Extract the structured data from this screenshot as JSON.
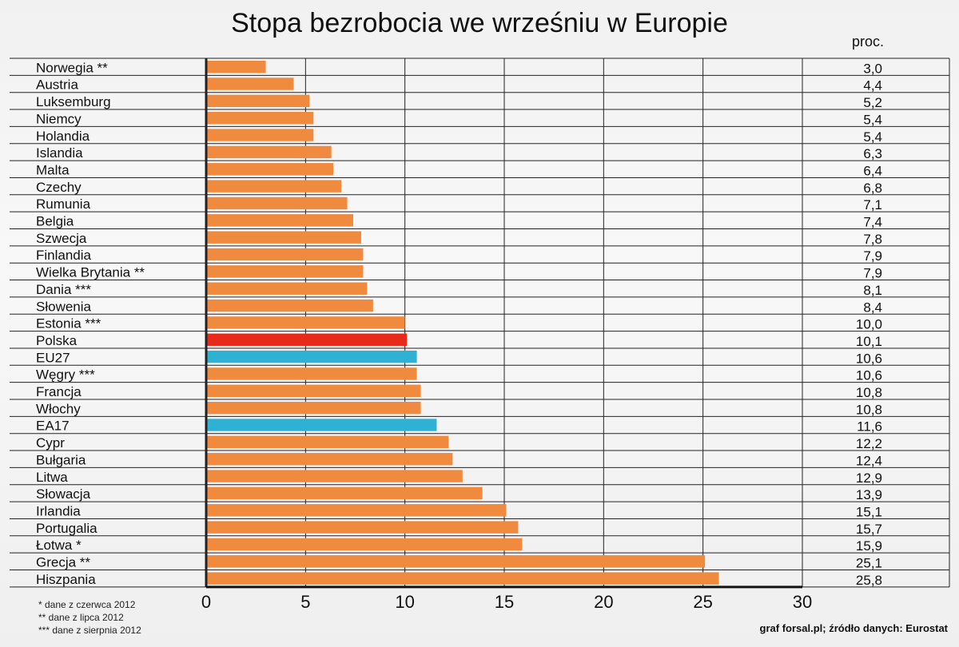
{
  "title": "Stopa bezrobocia we wrześniu w Europie",
  "unit_label": "proc.",
  "footnotes": [
    "* dane z czerwca 2012",
    "** dane z lipca 2012",
    "*** dane z sierpnia 2012"
  ],
  "source": "graf forsal.pl; źródło danych: Eurostat",
  "colors": {
    "default": "#f08a3e",
    "highlight": "#e82a1a",
    "aggregate": "#2eb1d3"
  },
  "chart_data": {
    "type": "bar",
    "orientation": "horizontal",
    "title": "Stopa bezrobocia we wrześniu w Europie",
    "xlim": [
      0,
      30
    ],
    "ticks": [
      0,
      5,
      10,
      15,
      20,
      25,
      30
    ],
    "grid": true,
    "categories": [
      "Norwegia **",
      "Austria",
      "Luksemburg",
      "Niemcy",
      "Holandia",
      "Islandia",
      "Malta",
      "Czechy",
      "Rumunia",
      "Belgia",
      "Szwecja",
      "Finlandia",
      "Wielka Brytania **",
      "Dania ***",
      "Słowenia",
      "Estonia ***",
      "Polska",
      "EU27",
      "Węgry ***",
      "Francja",
      "Włochy",
      "EA17",
      "Cypr",
      "Bułgaria",
      "Litwa",
      "Słowacja",
      "Irlandia",
      "Portugalia",
      "Łotwa *",
      "Grecja **",
      "Hiszpania"
    ],
    "values": [
      3.0,
      4.4,
      5.2,
      5.4,
      5.4,
      6.3,
      6.4,
      6.8,
      7.1,
      7.4,
      7.8,
      7.9,
      7.9,
      8.1,
      8.4,
      10.0,
      10.1,
      10.6,
      10.6,
      10.8,
      10.8,
      11.6,
      12.2,
      12.4,
      12.9,
      13.9,
      15.1,
      15.7,
      15.9,
      25.1,
      25.8
    ],
    "value_labels": [
      "3,0",
      "4,4",
      "5,2",
      "5,4",
      "5,4",
      "6,3",
      "6,4",
      "6,8",
      "7,1",
      "7,4",
      "7,8",
      "7,9",
      "7,9",
      "8,1",
      "8,4",
      "10,0",
      "10,1",
      "10,6",
      "10,6",
      "10,8",
      "10,8",
      "11,6",
      "12,2",
      "12,4",
      "12,9",
      "13,9",
      "15,1",
      "15,7",
      "15,9",
      "25,1",
      "25,8"
    ],
    "highlight": {
      "Polska": "highlight",
      "EU27": "aggregate",
      "EA17": "aggregate"
    }
  }
}
